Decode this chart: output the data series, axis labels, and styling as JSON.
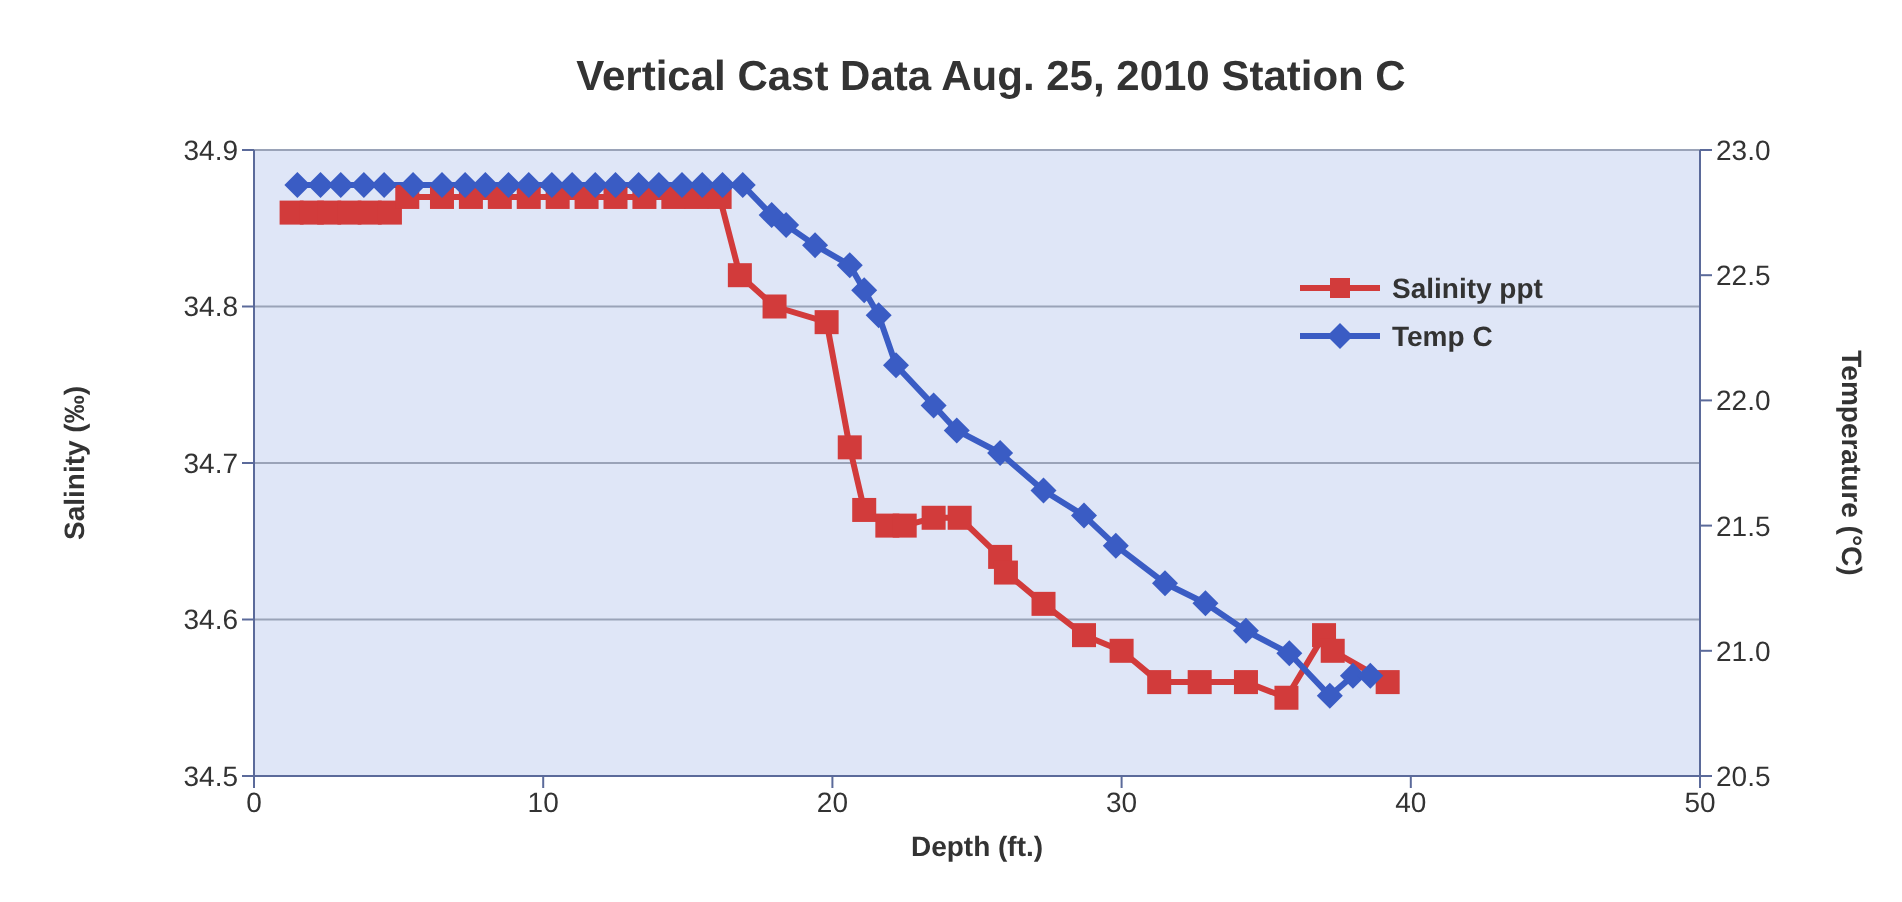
{
  "chart_data": {
    "type": "line",
    "title": "Vertical Cast Data Aug. 25, 2010 Station C",
    "xlabel": "Depth (ft.)",
    "ylabel": "Salinity (‰)",
    "y2label": "Temperature (°C)",
    "xlim": [
      0,
      50
    ],
    "xticks": [
      0,
      10,
      20,
      30,
      40,
      50
    ],
    "ylim": [
      34.5,
      34.9
    ],
    "yticks": [
      34.5,
      34.6,
      34.7,
      34.8,
      34.9
    ],
    "y2lim": [
      20.5,
      23
    ],
    "y2ticks": [
      20.5,
      {
        "value": 21,
        "label": "21.0"
      },
      21.5,
      {
        "value": 22,
        "label": "22.0"
      },
      22.5,
      {
        "value": 23,
        "label": "23.0"
      }
    ],
    "grid": "y",
    "legend": "top right",
    "line_style": "solid",
    "series": [
      {
        "name": "Salinity ppt",
        "color": "#d23b3b",
        "marker": "square",
        "x": [
          1.3,
          2,
          2.6,
          3.3,
          4,
          4.7,
          5.3,
          6.5,
          7.5,
          8.5,
          9.5,
          10.5,
          11.5,
          12.5,
          13.5,
          14.5,
          15.3,
          16.1,
          16.8,
          18,
          19.8,
          20.6,
          21.1,
          21.9,
          22.5,
          23.5,
          24.4,
          25.8,
          26,
          27.3,
          28.7,
          30,
          31.3,
          32.7,
          34.3,
          35.7,
          37,
          37.3,
          39.2
        ],
        "values": [
          34.86,
          34.86,
          34.86,
          34.86,
          34.86,
          34.86,
          34.87,
          34.87,
          34.87,
          34.87,
          34.87,
          34.87,
          34.87,
          34.87,
          34.87,
          34.87,
          34.87,
          34.87,
          34.82,
          34.8,
          34.79,
          34.71,
          34.67,
          34.66,
          34.66,
          34.665,
          34.665,
          34.64,
          34.63,
          34.61,
          34.59,
          34.58,
          34.56,
          34.56,
          34.56,
          34.55,
          34.59,
          34.58,
          34.56
        ]
      },
      {
        "name": "Temp C",
        "color": "#3a5cc4",
        "marker": "diamond",
        "axis": "y2",
        "x": [
          1.5,
          2.3,
          3,
          3.8,
          4.5,
          5.5,
          6.5,
          7.3,
          8,
          8.8,
          9.5,
          10.3,
          11,
          11.8,
          12.5,
          13.3,
          14,
          14.8,
          15.5,
          16.2,
          16.9,
          17.9,
          18.4,
          19.4,
          20.6,
          21.1,
          21.6,
          22.2,
          23.5,
          24.3,
          25.8,
          27.3,
          28.7,
          29.8,
          31.5,
          32.9,
          34.3,
          35.8,
          37.2,
          38,
          38.6
        ],
        "values": [
          22.86,
          22.86,
          22.86,
          22.86,
          22.86,
          22.86,
          22.86,
          22.86,
          22.86,
          22.86,
          22.86,
          22.86,
          22.86,
          22.86,
          22.86,
          22.86,
          22.86,
          22.86,
          22.86,
          22.86,
          22.86,
          22.74,
          22.7,
          22.62,
          22.54,
          22.44,
          22.34,
          22.14,
          21.98,
          21.88,
          21.79,
          21.64,
          21.54,
          21.42,
          21.27,
          21.19,
          21.08,
          20.99,
          20.82,
          20.9,
          20.9
        ]
      }
    ]
  }
}
